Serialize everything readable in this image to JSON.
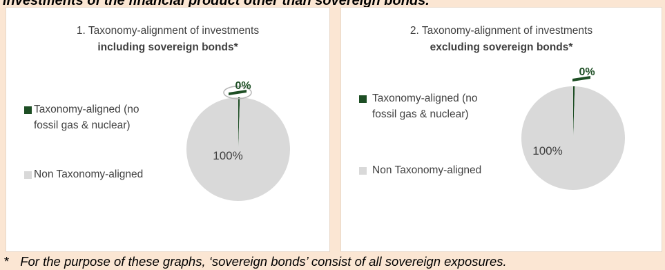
{
  "header": {
    "text": "investments of the financial product other than sovereign bonds."
  },
  "footnote": {
    "marker": "*",
    "text": "For the purpose of these graphs, ‘sovereign bonds’ consist of all sovereign exposures."
  },
  "colors": {
    "aligned": "#1d4e24",
    "non_aligned": "#d9d9d9",
    "background": "#fbe6d3"
  },
  "chart_data": [
    {
      "type": "pie",
      "title": "1. Taxonomy-alignment of investments",
      "subtitle": "including sovereign bonds*",
      "legend": [
        "Taxonomy-aligned (no fossil gas & nuclear)",
        "Non Taxonomy-aligned"
      ],
      "slices": [
        {
          "label": "Taxonomy-aligned (no fossil gas & nuclear)",
          "value": 0.5,
          "display": "0%",
          "color": "#1d4e24"
        },
        {
          "label": "Non Taxonomy-aligned",
          "value": 99.5,
          "display": "100%",
          "color": "#d9d9d9"
        }
      ]
    },
    {
      "type": "pie",
      "title": "2. Taxonomy-alignment of investments",
      "subtitle": "excluding sovereign bonds*",
      "legend": [
        "Taxonomy-aligned (no fossil gas & nuclear)",
        "Non Taxonomy-aligned"
      ],
      "slices": [
        {
          "label": "Taxonomy-aligned (no fossil gas & nuclear)",
          "value": 0.5,
          "display": "0%",
          "color": "#1d4e24"
        },
        {
          "label": "Non Taxonomy-aligned",
          "value": 99.5,
          "display": "100%",
          "color": "#d9d9d9"
        }
      ]
    }
  ],
  "legend_lines": {
    "aligned_line1": "Taxonomy-aligned (no",
    "aligned_line2": "fossil gas & nuclear)",
    "non_aligned": "Non Taxonomy-aligned"
  }
}
